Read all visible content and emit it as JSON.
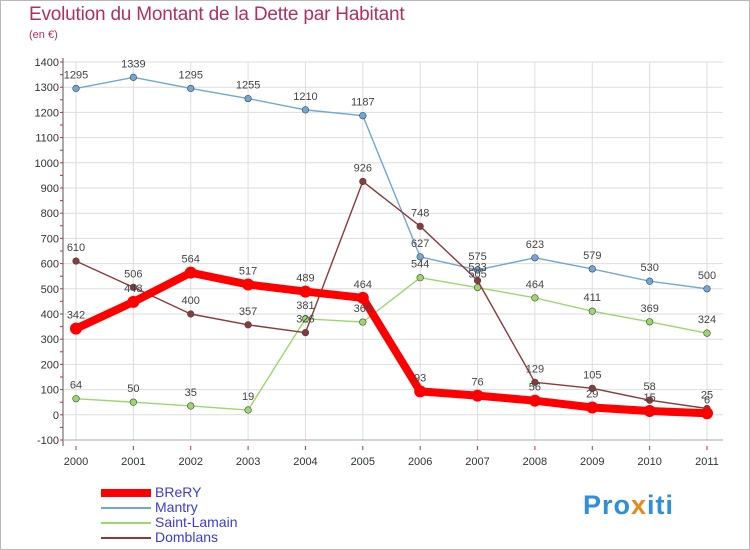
{
  "title": "Evolution du Montant de la Dette par Habitant",
  "subtitle": "(en €)",
  "brand": {
    "part1": "Pro",
    "part2": "x",
    "part3": "iti"
  },
  "chart_data": {
    "type": "line",
    "title": "Evolution du Montant de la Dette par Habitant",
    "ylabel": "(en €)",
    "xlabel": "",
    "ylim": [
      -100,
      1400
    ],
    "yticks": [
      -100,
      0,
      100,
      200,
      300,
      400,
      500,
      600,
      700,
      800,
      900,
      1000,
      1100,
      1200,
      1300,
      1400
    ],
    "categories": [
      "2000",
      "2001",
      "2002",
      "2003",
      "2004",
      "2005",
      "2006",
      "2007",
      "2008",
      "2009",
      "2010",
      "2011"
    ],
    "grid": true,
    "legend_position": "bottom-left",
    "series": [
      {
        "name": "BReRY",
        "color": "#ff0000",
        "values": [
          342,
          448,
          564,
          517,
          489,
          464,
          93,
          76,
          56,
          29,
          15,
          6
        ]
      },
      {
        "name": "Mantry",
        "color": "#6fa7d6",
        "values": [
          1295,
          1339,
          1295,
          1255,
          1210,
          1187,
          627,
          575,
          623,
          579,
          530,
          500
        ]
      },
      {
        "name": "Saint-Lamain",
        "color": "#9ad86b",
        "values": [
          64,
          50,
          35,
          19,
          381,
          368,
          544,
          505,
          464,
          411,
          369,
          324
        ]
      },
      {
        "name": "Domblans",
        "color": "#8b3a3a",
        "values": [
          610,
          506,
          400,
          357,
          326,
          926,
          748,
          533,
          129,
          105,
          58,
          25
        ]
      }
    ]
  }
}
